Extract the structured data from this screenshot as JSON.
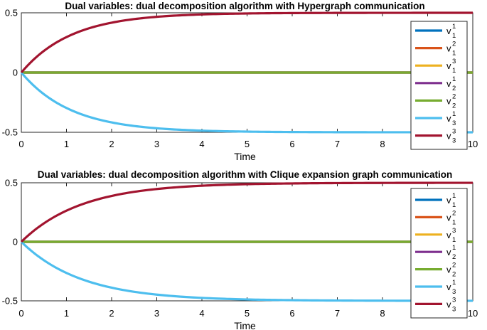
{
  "chart_data": [
    {
      "type": "line",
      "title": "Dual variables: dual decomposition algorithm with Hypergraph communication",
      "xlabel": "Time",
      "ylabel": "",
      "xlim": [
        0,
        10
      ],
      "ylim": [
        -0.5,
        0.5
      ],
      "xticks": [
        "0",
        "1",
        "2",
        "3",
        "4",
        "5",
        "6",
        "7",
        "8",
        "9",
        "10"
      ],
      "yticks": [
        "-0.5",
        "0",
        "0.5"
      ],
      "grid": false,
      "legend_position": "right",
      "series": [
        {
          "base": "v",
          "sub": "1",
          "sup": "1",
          "color": "#0072BD",
          "final": 0,
          "rate": 0.9
        },
        {
          "base": "v",
          "sub": "1",
          "sup": "2",
          "color": "#D95319",
          "final": 0,
          "rate": 0.9
        },
        {
          "base": "v",
          "sub": "1",
          "sup": "3",
          "color": "#EDB120",
          "final": 0,
          "rate": 0.9
        },
        {
          "base": "v",
          "sub": "2",
          "sup": "1",
          "color": "#7E2F8E",
          "final": 0,
          "rate": 0.9
        },
        {
          "base": "v",
          "sub": "2",
          "sup": "2",
          "color": "#77AC30",
          "final": 0,
          "rate": 0.9
        },
        {
          "base": "v",
          "sub": "3",
          "sup": "1",
          "color": "#4DBEEE",
          "final": -0.5,
          "rate": 0.9
        },
        {
          "base": "v",
          "sub": "3",
          "sup": "3",
          "color": "#A2142F",
          "final": 0.5,
          "rate": 0.9
        }
      ]
    },
    {
      "type": "line",
      "title": "Dual variables: dual decomposition algorithm with Clique expansion graph communication",
      "xlabel": "Time",
      "ylabel": "",
      "xlim": [
        0,
        10
      ],
      "ylim": [
        -0.5,
        0.5
      ],
      "xticks": [
        "0",
        "1",
        "2",
        "3",
        "4",
        "5",
        "6",
        "7",
        "8",
        "9",
        "10"
      ],
      "yticks": [
        "-0.5",
        "0",
        "0.5"
      ],
      "grid": false,
      "legend_position": "right",
      "series": [
        {
          "base": "v",
          "sub": "1",
          "sup": "1",
          "color": "#0072BD",
          "final": 0,
          "rate": 0.75
        },
        {
          "base": "v",
          "sub": "1",
          "sup": "2",
          "color": "#D95319",
          "final": 0,
          "rate": 0.75
        },
        {
          "base": "v",
          "sub": "1",
          "sup": "3",
          "color": "#EDB120",
          "final": 0,
          "rate": 0.75
        },
        {
          "base": "v",
          "sub": "2",
          "sup": "1",
          "color": "#7E2F8E",
          "final": 0,
          "rate": 0.75
        },
        {
          "base": "v",
          "sub": "2",
          "sup": "2",
          "color": "#77AC30",
          "final": 0,
          "rate": 0.75
        },
        {
          "base": "v",
          "sub": "3",
          "sup": "1",
          "color": "#4DBEEE",
          "final": -0.5,
          "rate": 0.75
        },
        {
          "base": "v",
          "sub": "3",
          "sup": "3",
          "color": "#A2142F",
          "final": 0.5,
          "rate": 0.75
        }
      ]
    }
  ]
}
